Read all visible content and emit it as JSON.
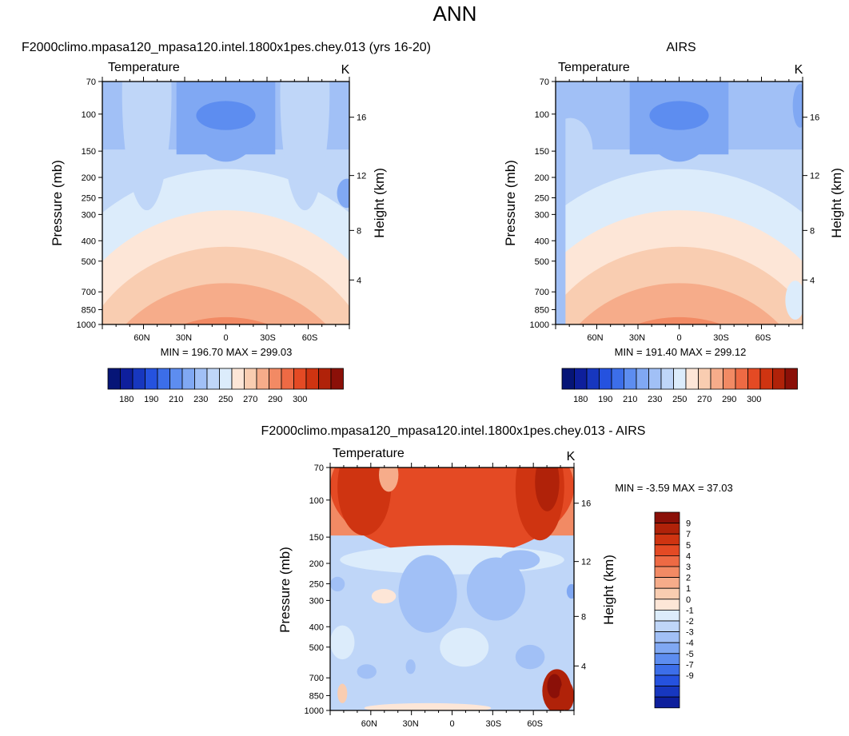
{
  "page_title": "ANN",
  "colors": {
    "warm": [
      "#fde6d7",
      "#f9cdb1",
      "#f6ac8a",
      "#f28a64",
      "#ee6a44",
      "#e44a24",
      "#cf3411",
      "#b02209",
      "#8b1008"
    ],
    "cool": [
      "#dcecfb",
      "#bfd6f8",
      "#a1c0f6",
      "#80a8f3",
      "#5d8df0",
      "#3c6ee9",
      "#2552df",
      "#1737bf",
      "#0e1f9c",
      "#061577"
    ]
  },
  "chart_data": [
    {
      "id": "test",
      "type": "heatmap",
      "subtitle": "F2000climo.mpasa120_mpasa120.intel.1800x1pes.chey.013 (yrs 16-20)",
      "variable": "Temperature",
      "units": "K",
      "ylabel": "Pressure (mb)",
      "y2label": "Height (km)",
      "pressure_ticks": [
        "70",
        "100",
        "150",
        "200",
        "250",
        "300",
        "400",
        "500",
        "700",
        "850",
        "1000"
      ],
      "height_ticks": [
        "4",
        "8",
        "12",
        "16"
      ],
      "lat_ticks": [
        "60N",
        "30N",
        "0",
        "30S",
        "60S"
      ],
      "stats": "MIN = 196.70  MAX = 299.03",
      "colorbar_labels": [
        "180",
        "190",
        "210",
        "230",
        "250",
        "270",
        "290",
        "300"
      ]
    },
    {
      "id": "obs",
      "type": "heatmap",
      "subtitle": "AIRS",
      "variable": "Temperature",
      "units": "K",
      "ylabel": "Pressure (mb)",
      "y2label": "Height (km)",
      "pressure_ticks": [
        "70",
        "100",
        "150",
        "200",
        "250",
        "300",
        "400",
        "500",
        "700",
        "850",
        "1000"
      ],
      "height_ticks": [
        "4",
        "8",
        "12",
        "16"
      ],
      "lat_ticks": [
        "60N",
        "30N",
        "0",
        "30S",
        "60S"
      ],
      "stats": "MIN = 191.40  MAX = 299.12",
      "colorbar_labels": [
        "180",
        "190",
        "210",
        "230",
        "250",
        "270",
        "290",
        "300"
      ]
    },
    {
      "id": "diff",
      "type": "heatmap",
      "subtitle": "F2000climo.mpasa120_mpasa120.intel.1800x1pes.chey.013 - AIRS",
      "variable": "Temperature",
      "units": "K",
      "ylabel": "Pressure (mb)",
      "y2label": "Height (km)",
      "pressure_ticks": [
        "70",
        "100",
        "150",
        "200",
        "250",
        "300",
        "400",
        "500",
        "700",
        "850",
        "1000"
      ],
      "height_ticks": [
        "4",
        "8",
        "12",
        "16"
      ],
      "lat_ticks": [
        "60N",
        "30N",
        "0",
        "30S",
        "60S"
      ],
      "stats": "MIN =  -3.59  MAX =  37.03",
      "colorbar_labels": [
        "9",
        "7",
        "5",
        "4",
        "3",
        "2",
        "1",
        "0",
        "-1",
        "-2",
        "-3",
        "-4",
        "-5",
        "-7",
        "-9"
      ]
    }
  ]
}
